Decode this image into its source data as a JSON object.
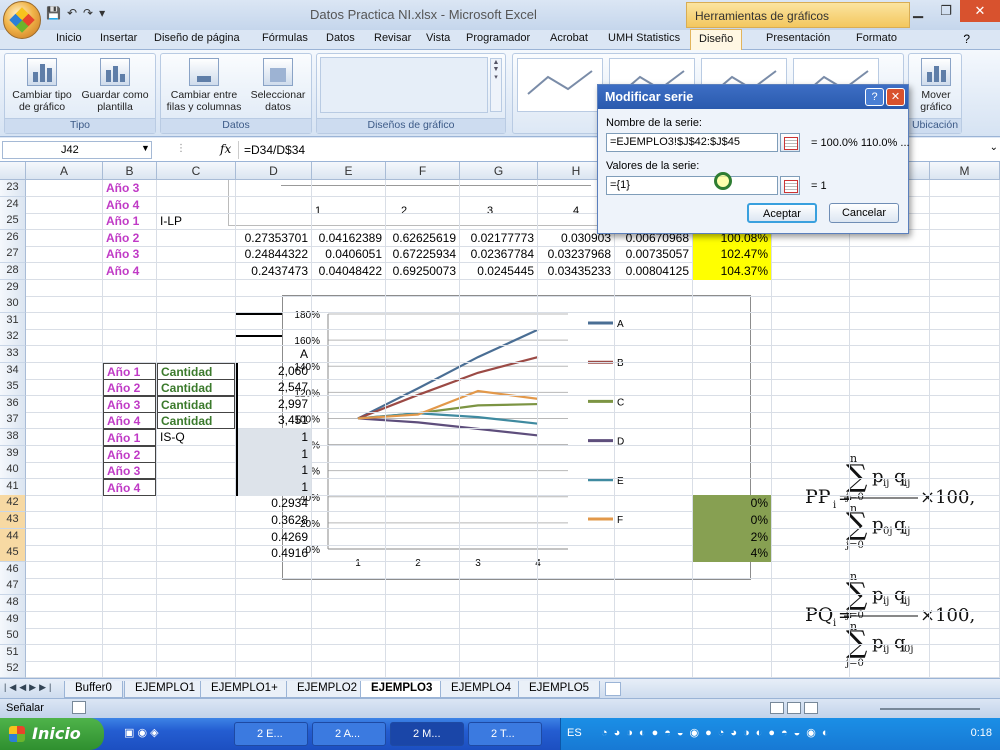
{
  "window": {
    "title": "Datos Practica NI.xlsx - Microsoft Excel",
    "contextual_title": "Herramientas de gráficos"
  },
  "ribbon_tabs": [
    "Inicio",
    "Insertar",
    "Diseño de página",
    "Fórmulas",
    "Datos",
    "Revisar",
    "Vista",
    "Programador",
    "Acrobat",
    "UMH Statistics",
    "Diseño",
    "Presentación",
    "Formato"
  ],
  "ribbon_groups": {
    "tipo": {
      "label": "Tipo",
      "buttons": [
        "Cambiar tipo de gráfico",
        "Guardar como plantilla"
      ]
    },
    "datos": {
      "label": "Datos",
      "buttons": [
        "Cambiar entre filas y columnas",
        "Seleccionar datos"
      ]
    },
    "diseno": {
      "label": "Diseños de gráfico"
    },
    "ubicacion": {
      "label": "Ubicación",
      "buttons": [
        "Mover gráfico"
      ]
    }
  },
  "formula_bar": {
    "name_box": "J42",
    "fx": "fx",
    "content": "=D34/D$34"
  },
  "columns": [
    "A",
    "B",
    "C",
    "D",
    "E",
    "F",
    "G",
    "H",
    "I",
    "J",
    "K",
    "L",
    "M"
  ],
  "rows": [
    "23",
    "24",
    "25",
    "26",
    "27",
    "28",
    "29",
    "30",
    "31",
    "32",
    "33",
    "34",
    "35",
    "36",
    "37",
    "38",
    "39",
    "40",
    "41",
    "42",
    "43",
    "44",
    "45",
    "46",
    "47",
    "48",
    "49",
    "50",
    "51",
    "52"
  ],
  "cells": {
    "b23": "Año 3",
    "b24": "Año 4",
    "b25": "Año 1",
    "c25": "I-LP",
    "b26": "Año 2",
    "b27": "Año 3",
    "b28": "Año 4",
    "d26": "0.27353701",
    "e26": "0.04162389",
    "f26": "0.62625619",
    "g26": "0.02177773",
    "h26": "0.030903",
    "i26": "0.00670968",
    "j26": "100.08%",
    "d27": "0.24844322",
    "e27": "0.0406051",
    "f27": "0.67225934",
    "g27": "0.02367784",
    "h27": "0.03237968",
    "i27": "0.00735057",
    "j27": "102.47%",
    "d28": "0.2437473",
    "e28": "0.04048422",
    "f28": "0.69250073",
    "g28": "0.0245445",
    "h28": "0.03435233",
    "i28": "0.00804125",
    "j28": "104.37%",
    "d33": "A",
    "b34": "Año 1",
    "c34": "Cantidad",
    "d34": "2,060",
    "b35": "Año 2",
    "c35": "Cantidad",
    "d35": "2,547",
    "b36": "Año 3",
    "c36": "Cantidad",
    "d36": "2,997",
    "b37": "Año 4",
    "c37": "Cantidad",
    "d37": "3,451",
    "b38": "Año 1",
    "c38": "IS-Q",
    "d38": "1",
    "b39": "Año 2",
    "d39": "1",
    "b40": "Año 3",
    "d40": "1",
    "b41": "Año 4",
    "d41": "1",
    "d42": "0.2934",
    "d43": "0.3628",
    "d44": "0.4269",
    "d45": "0.4916",
    "j42": "0%",
    "j43": "0%",
    "j44": "2%",
    "j45": "4%"
  },
  "top_chart": {
    "ylabel_tick": "80%",
    "x_ticks": [
      "1",
      "2",
      "3",
      "4"
    ]
  },
  "chart_data": {
    "type": "line",
    "x": [
      1,
      2,
      3,
      4
    ],
    "series": [
      {
        "name": "A",
        "color": "#4a6e94",
        "values": [
          100,
          123,
          147,
          168
        ]
      },
      {
        "name": "B",
        "color": "#9b4a45",
        "values": [
          100,
          118,
          135,
          147
        ]
      },
      {
        "name": "C",
        "color": "#7c9443",
        "values": [
          100,
          104,
          110,
          111
        ]
      },
      {
        "name": "D",
        "color": "#5e4e7c",
        "values": [
          100,
          97,
          92,
          87
        ]
      },
      {
        "name": "E",
        "color": "#3f8aa0",
        "values": [
          100,
          104,
          101,
          96
        ]
      },
      {
        "name": "F",
        "color": "#e2984a",
        "values": [
          100,
          103,
          121,
          115
        ]
      }
    ],
    "y_ticks": [
      "0%",
      "20%",
      "40%",
      "60%",
      "80%",
      "100%",
      "120%",
      "140%",
      "160%",
      "180%"
    ],
    "ylim": [
      0,
      180
    ],
    "x_ticks": [
      "1",
      "2",
      "3",
      "4"
    ],
    "grid": true,
    "legend_placement": "right"
  },
  "formulas": {
    "pp": {
      "lhs": "PP",
      "sub": "i",
      "sum_top": "n",
      "sum_bottom": "j=0",
      "num": "p",
      "num_sub": "ij",
      "num2": "q",
      "num2_sub": "ij",
      "den": "p",
      "den_sub": "0j",
      "den2": "q",
      "den2_sub": "ij",
      "tail": "×100,"
    },
    "pq": {
      "lhs": "PQ",
      "sub": "i",
      "sum_top": "n",
      "sum_bottom": "j=0",
      "num": "p",
      "num_sub": "ij",
      "num2": "q",
      "num2_sub": "ij",
      "den": "p",
      "den_sub": "ij",
      "den2": "q",
      "den2_sub": "0j",
      "tail": "×100,"
    }
  },
  "dialog": {
    "title": "Modificar serie",
    "name_label": "Nombre de la serie:",
    "name_value": "=EJEMPLO3!$J$42:$J$45",
    "name_result": "= 100.0% 110.0% ...",
    "values_label": "Valores de la serie:",
    "values_value": "={1}",
    "values_result": "= 1",
    "accept": "Aceptar",
    "cancel": "Cancelar"
  },
  "sheet_tabs": [
    "Buffer0",
    "EJEMPLO1",
    "EJEMPLO1+",
    "EJEMPLO2",
    "EJEMPLO3",
    "EJEMPLO4",
    "EJEMPLO5"
  ],
  "active_sheet": "EJEMPLO3",
  "status": "Señalar",
  "taskbar": {
    "start": "Inicio",
    "buttons": [
      "2 E...",
      "2 A...",
      "2 M...",
      "2 T..."
    ],
    "lang": "ES",
    "clock": "0:18"
  }
}
